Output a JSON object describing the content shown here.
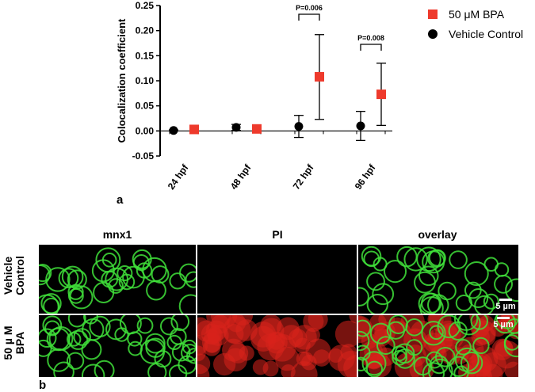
{
  "chart_data": {
    "type": "scatter",
    "ylabel": "Colocalization coefficient",
    "ylim": [
      -0.05,
      0.25
    ],
    "yticks": [
      "0.25",
      "0.20",
      "0.15",
      "0.10",
      "0.05",
      "0.00",
      "-0.05"
    ],
    "categories": [
      "24 hpf",
      "48 hpf",
      "72 hpf",
      "96 hpf"
    ],
    "series": [
      {
        "name": "Vehicle Control",
        "marker": "circle",
        "color": "#000000",
        "values": [
          0.001,
          0.007,
          0.009,
          0.01
        ],
        "err_low": [
          0.001,
          0.006,
          0.022,
          0.029
        ],
        "err_high": [
          0.001,
          0.006,
          0.022,
          0.029
        ]
      },
      {
        "name": "50 μM BPA",
        "marker": "square",
        "color": "#ee3a2c",
        "values": [
          0.003,
          0.004,
          0.108,
          0.073
        ],
        "err_low": [
          0.005,
          0.005,
          0.085,
          0.062
        ],
        "err_high": [
          0.005,
          0.005,
          0.084,
          0.062
        ]
      }
    ],
    "annotations": [
      {
        "category": "72 hpf",
        "text": "P=0.006"
      },
      {
        "category": "96 hpf",
        "text": "P=0.008"
      }
    ],
    "legend_position": "top-right"
  },
  "panel_a_label": "a",
  "panel_b_label": "b",
  "micrograph": {
    "columns": [
      "mnx1",
      "PI",
      "overlay"
    ],
    "rows": [
      {
        "label_line1": "Vehicle",
        "label_line2": "Control"
      },
      {
        "label_line1": "50 µ M",
        "label_line2": "BPA"
      }
    ],
    "scalebar_text": "5 µm",
    "colors": {
      "green": "#3fe03a",
      "red": "#d8231b",
      "background": "#000000"
    }
  }
}
